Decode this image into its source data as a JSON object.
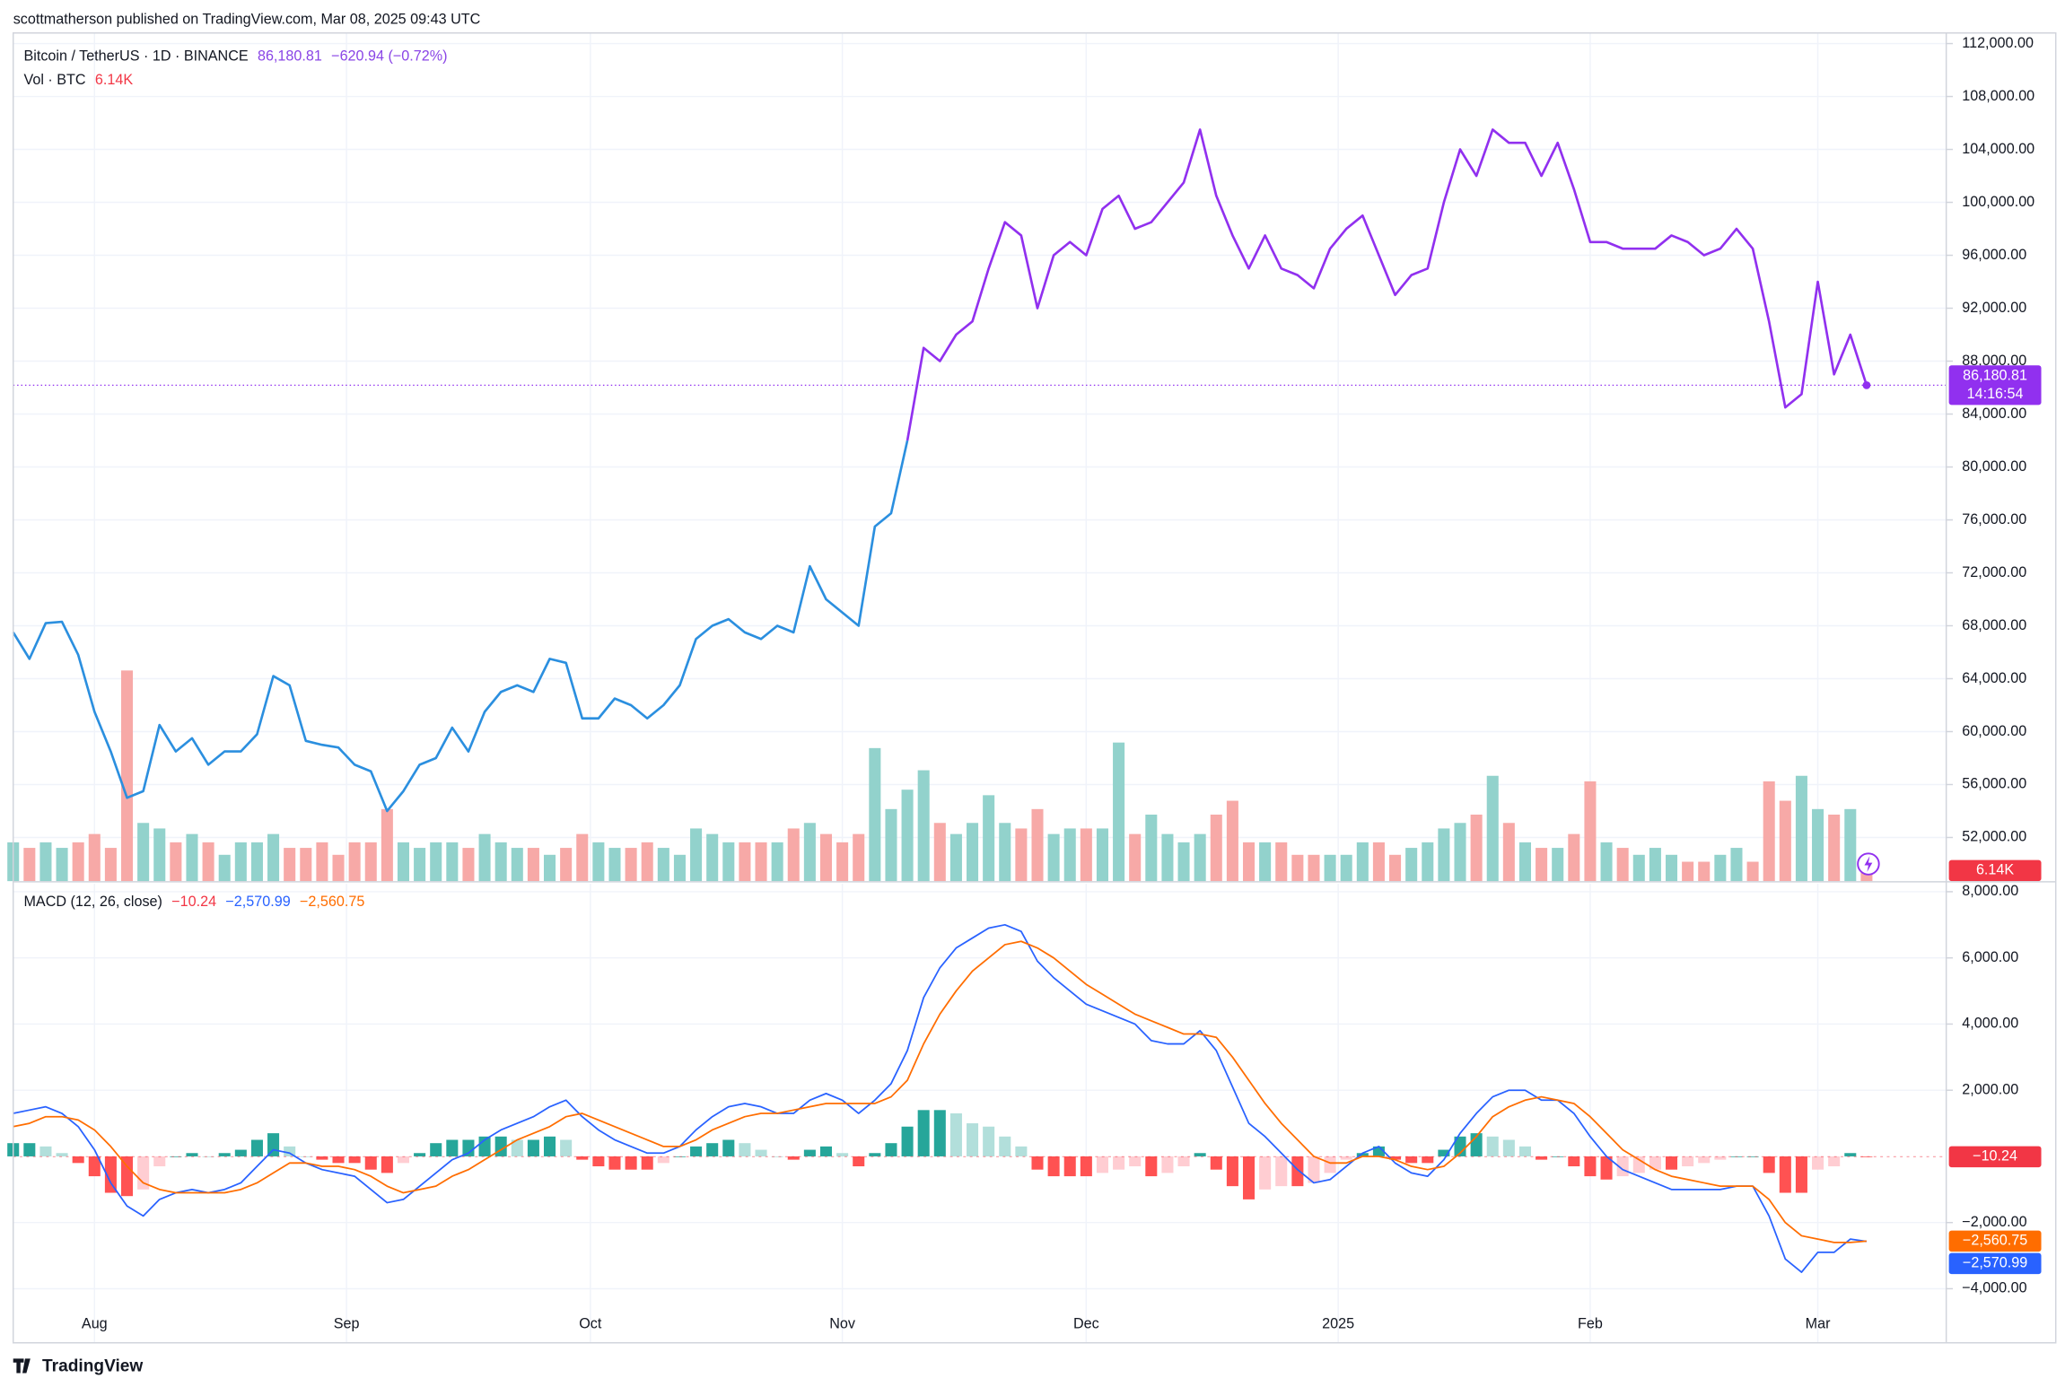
{
  "header": "scottmatherson published on TradingView.com, Mar 08, 2025 09:43 UTC",
  "footer": "TradingView",
  "chart_data": [
    {
      "type": "line",
      "title": "Bitcoin / TetherUS · 1D · BINANCE",
      "change": "−620.94 (−0.72%)",
      "countdown": "14:16:54",
      "xlim": [
        0,
        118.9
      ],
      "ylim": [
        48700,
        112800
      ],
      "yticks": [
        {
          "value": 52000,
          "label": "52,000.00"
        },
        {
          "value": 56000,
          "label": "56,000.00"
        },
        {
          "value": 60000,
          "label": "60,000.00"
        },
        {
          "value": 64000,
          "label": "64,000.00"
        },
        {
          "value": 68000,
          "label": "68,000.00"
        },
        {
          "value": 72000,
          "label": "72,000.00"
        },
        {
          "value": 76000,
          "label": "76,000.00"
        },
        {
          "value": 80000,
          "label": "80,000.00"
        },
        {
          "value": 84000,
          "label": "84,000.00"
        },
        {
          "value": 88000,
          "label": "88,000.00"
        },
        {
          "value": 92000,
          "label": "92,000.00"
        },
        {
          "value": 96000,
          "label": "96,000.00"
        },
        {
          "value": 100000,
          "label": "100,000.00"
        },
        {
          "value": 104000,
          "label": "104,000.00"
        },
        {
          "value": 108000,
          "label": "108,000.00"
        },
        {
          "value": 112000,
          "label": "112,000.00"
        }
      ],
      "y2lim": [
        0,
        306000
      ],
      "grid": true,
      "series": [
        {
          "name": "Bitcoin / TetherUS · 1D · BINANCE",
          "type": "line",
          "colors": [
            "#2b8fdf",
            "#9130ef"
          ],
          "color_break": 55,
          "label_color": "#8a45e6",
          "values": [
            67500,
            65500,
            68200,
            68300,
            65800,
            61500,
            58500,
            55000,
            55500,
            60500,
            58500,
            59500,
            57500,
            58500,
            58500,
            59800,
            64200,
            63500,
            59300,
            59000,
            58800,
            57500,
            57000,
            54000,
            55500,
            57500,
            58000,
            60300,
            58500,
            61500,
            63000,
            63500,
            63000,
            65500,
            65200,
            61000,
            61000,
            62500,
            62000,
            61000,
            62000,
            63500,
            67000,
            68000,
            68500,
            67500,
            67000,
            68000,
            67500,
            72500,
            70000,
            69000,
            68000,
            75500,
            76500,
            82000,
            89000,
            88000,
            90000,
            91000,
            95000,
            98500,
            97500,
            92000,
            96000,
            97000,
            96000,
            99500,
            100500,
            98000,
            98500,
            100000,
            101500,
            105500,
            100500,
            97500,
            95000,
            97500,
            95000,
            94500,
            93500,
            96500,
            98000,
            99000,
            96000,
            93000,
            94500,
            95000,
            100000,
            104000,
            102000,
            105500,
            104500,
            104500,
            102000,
            104500,
            101000,
            97000,
            97000,
            96500,
            96500,
            96500,
            97500,
            97000,
            96000,
            96500,
            98000,
            96500,
            91000,
            84500,
            85500,
            94000,
            87000,
            90000,
            86180.81
          ],
          "value_labels": {
            "114": "86,180.81"
          }
        },
        {
          "name": "Vol · BTC",
          "type": "bar",
          "axis": "y2",
          "up_color": "#92d2cc",
          "down_color": "#f7a9a7",
          "label_color": "#f23645",
          "values": [
            14000,
            12000,
            14000,
            12000,
            14000,
            17000,
            12000,
            76000,
            21000,
            19000,
            14000,
            17000,
            14000,
            9500,
            14000,
            14000,
            17000,
            12000,
            12000,
            14000,
            9500,
            14000,
            14000,
            26000,
            14000,
            12000,
            14000,
            14000,
            12000,
            17000,
            14000,
            12000,
            12000,
            9500,
            12000,
            17000,
            14000,
            12000,
            12000,
            14000,
            12000,
            9500,
            19000,
            17000,
            14000,
            14000,
            14000,
            14000,
            19000,
            21000,
            17000,
            14000,
            17000,
            48000,
            26000,
            33000,
            40000,
            21000,
            17000,
            21000,
            31000,
            21000,
            19000,
            26000,
            17000,
            19000,
            19000,
            19000,
            50000,
            17000,
            24000,
            17000,
            14000,
            17000,
            24000,
            29000,
            14000,
            14000,
            14000,
            9500,
            9500,
            9500,
            9500,
            14000,
            14000,
            9500,
            12000,
            14000,
            19000,
            21000,
            24000,
            38000,
            21000,
            14000,
            12000,
            12000,
            17000,
            36000,
            14000,
            12000,
            9500,
            12000,
            9500,
            7000,
            7000,
            9500,
            12000,
            7000,
            36000,
            29000,
            38000,
            26000,
            24000,
            26000,
            6140
          ],
          "value_labels": {
            "114": "6.14K"
          }
        }
      ]
    },
    {
      "type": "macd",
      "title": "MACD (12, 26, close)",
      "xlim": [
        0,
        118.9
      ],
      "xticks": [
        {
          "value": 5,
          "label": "Aug"
        },
        {
          "value": 20.5,
          "label": "Sep"
        },
        {
          "value": 35.5,
          "label": "Oct"
        },
        {
          "value": 51,
          "label": "Nov"
        },
        {
          "value": 66,
          "label": "Dec"
        },
        {
          "value": 81.5,
          "label": "2025"
        },
        {
          "value": 97,
          "label": "Feb"
        },
        {
          "value": 111,
          "label": "Mar"
        }
      ],
      "ylim": [
        -5635,
        8240
      ],
      "yticks": [
        {
          "value": -4000,
          "label": "−4,000.00"
        },
        {
          "value": -2000,
          "label": "−2,000.00"
        },
        {
          "value": 2000,
          "label": "2,000.00"
        },
        {
          "value": 4000,
          "label": "4,000.00"
        },
        {
          "value": 6000,
          "label": "6,000.00"
        },
        {
          "value": 8000,
          "label": "8,000.00"
        }
      ],
      "grid": true,
      "series": [
        {
          "type": "histogram",
          "colors": {
            "up_rising": "#26a69a",
            "up_falling": "#b2dfdb",
            "down_falling": "#ff5252",
            "down_rising": "#ffcdd2"
          },
          "label_color": "#f23645",
          "values": [
            400,
            400,
            300,
            100,
            -200,
            -600,
            -1100,
            -1200,
            -1000,
            -300,
            0,
            100,
            0,
            100,
            200,
            500,
            700,
            300,
            0,
            -100,
            -200,
            -200,
            -400,
            -500,
            -200,
            100,
            400,
            500,
            500,
            600,
            600,
            500,
            500,
            600,
            500,
            -100,
            -300,
            -400,
            -400,
            -400,
            -200,
            0,
            300,
            400,
            500,
            400,
            200,
            0,
            -100,
            200,
            300,
            100,
            -300,
            100,
            400,
            900,
            1400,
            1400,
            1300,
            1000,
            900,
            600,
            300,
            -400,
            -600,
            -600,
            -600,
            -500,
            -400,
            -300,
            -600,
            -500,
            -300,
            100,
            -400,
            -900,
            -1300,
            -1000,
            -900,
            -900,
            -800,
            -500,
            -100,
            100,
            300,
            -100,
            -200,
            -200,
            200,
            600,
            700,
            600,
            500,
            300,
            -100,
            0,
            -300,
            -600,
            -700,
            -600,
            -500,
            -400,
            -400,
            -300,
            -200,
            -100,
            0,
            0,
            -500,
            -1100,
            -1100,
            -400,
            -300,
            100,
            -10.24
          ],
          "value_labels": {
            "114": "−10.24"
          }
        },
        {
          "type": "line",
          "color": "#2962ff",
          "values": [
            1300,
            1400,
            1500,
            1300,
            900,
            200,
            -800,
            -1500,
            -1800,
            -1300,
            -1100,
            -1000,
            -1100,
            -1000,
            -800,
            -300,
            200,
            100,
            -200,
            -400,
            -500,
            -600,
            -1000,
            -1400,
            -1300,
            -900,
            -500,
            -100,
            100,
            500,
            800,
            1000,
            1200,
            1500,
            1700,
            1200,
            800,
            500,
            300,
            100,
            100,
            300,
            800,
            1200,
            1500,
            1600,
            1500,
            1300,
            1300,
            1700,
            1900,
            1700,
            1300,
            1700,
            2200,
            3200,
            4800,
            5700,
            6300,
            6600,
            6900,
            7000,
            6800,
            5900,
            5400,
            5000,
            4600,
            4400,
            4200,
            4000,
            3500,
            3400,
            3400,
            3800,
            3200,
            2100,
            1000,
            600,
            100,
            -400,
            -800,
            -700,
            -300,
            100,
            300,
            -200,
            -500,
            -600,
            -100,
            700,
            1300,
            1800,
            2000,
            2000,
            1700,
            1700,
            1300,
            600,
            0,
            -400,
            -600,
            -800,
            -1000,
            -1000,
            -1000,
            -1000,
            -900,
            -900,
            -1800,
            -3100,
            -3500,
            -2900,
            -2900,
            -2500,
            -2570.99
          ],
          "value_labels": {
            "114": "−2,570.99"
          }
        },
        {
          "type": "line",
          "color": "#ff6d00",
          "values": [
            900,
            1000,
            1200,
            1200,
            1100,
            800,
            300,
            -300,
            -800,
            -1000,
            -1100,
            -1100,
            -1100,
            -1100,
            -1000,
            -800,
            -500,
            -200,
            -200,
            -300,
            -300,
            -400,
            -600,
            -900,
            -1100,
            -1000,
            -900,
            -600,
            -400,
            -100,
            200,
            500,
            700,
            900,
            1200,
            1300,
            1100,
            900,
            700,
            500,
            300,
            300,
            500,
            800,
            1000,
            1200,
            1300,
            1300,
            1400,
            1500,
            1600,
            1600,
            1600,
            1600,
            1800,
            2300,
            3400,
            4300,
            5000,
            5600,
            6000,
            6400,
            6500,
            6300,
            6000,
            5600,
            5200,
            4900,
            4600,
            4300,
            4100,
            3900,
            3700,
            3700,
            3600,
            3000,
            2300,
            1600,
            1000,
            500,
            0,
            -200,
            -200,
            0,
            0,
            -100,
            -300,
            -400,
            -300,
            100,
            600,
            1200,
            1500,
            1700,
            1800,
            1700,
            1600,
            1200,
            700,
            200,
            -100,
            -400,
            -600,
            -700,
            -800,
            -900,
            -900,
            -900,
            -1300,
            -2000,
            -2400,
            -2500,
            -2600,
            -2600,
            -2560.75
          ],
          "value_labels": {
            "114": "−2,560.75"
          }
        }
      ]
    }
  ]
}
